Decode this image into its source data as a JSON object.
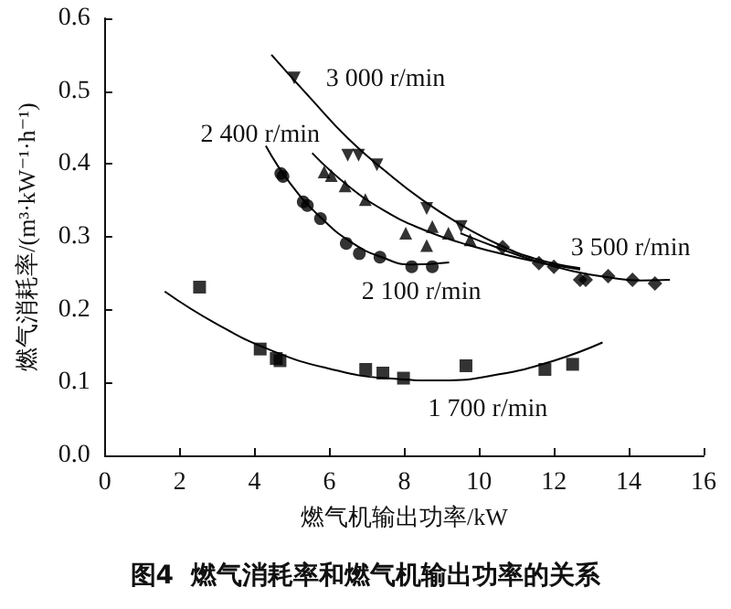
{
  "chart_data": {
    "type": "scatter",
    "title": "图4  燃气消耗率和燃气机输出功率的关系",
    "xlabel": "燃气机输出功率/kW",
    "ylabel": "燃气消耗率/(m³·kW⁻¹·h⁻¹)",
    "xlim": [
      0,
      16
    ],
    "xticks": [
      0,
      2,
      4,
      6,
      8,
      10,
      12,
      14,
      16
    ],
    "ylim": [
      0,
      0.6
    ],
    "yticks": [
      {
        "value": 0,
        "label": "0.0"
      },
      {
        "value": 0.1,
        "label": "0.1"
      },
      {
        "value": 0.2,
        "label": "0.2"
      },
      {
        "value": 0.3,
        "label": "0.3"
      },
      {
        "value": 0.4,
        "label": "0.4"
      },
      {
        "value": 0.5,
        "label": "0.5"
      },
      {
        "value": 0.6,
        "label": "0.6"
      }
    ],
    "series": [
      {
        "name": "1 700 r/min",
        "marker": "square",
        "color": "#000000",
        "x": [
          2.53,
          4.15,
          4.58,
          4.68,
          6.97,
          7.43,
          7.98,
          9.65,
          11.76,
          12.5
        ],
        "values": [
          0.231,
          0.146,
          0.133,
          0.13,
          0.118,
          0.113,
          0.106,
          0.123,
          0.118,
          0.125
        ]
      },
      {
        "type": "line",
        "marker": "none",
        "color": "#000000",
        "x": [
          1.6,
          3,
          4.5,
          6,
          7.5,
          9,
          10.5,
          12,
          13.3
        ],
        "values": [
          0.225,
          0.18,
          0.143,
          0.119,
          0.106,
          0.103,
          0.111,
          0.13,
          0.155
        ]
      },
      {
        "name": "3 000 r/min",
        "marker": "triangle-down",
        "color": "#000000",
        "x": [
          5.06,
          6.49,
          6.78,
          7.27,
          8.6,
          9.52
        ],
        "values": [
          0.518,
          0.412,
          0.412,
          0.399,
          0.339,
          0.314
        ]
      },
      {
        "type": "line",
        "marker": "none",
        "color": "#000000",
        "x": [
          4.45,
          5.5,
          6.5,
          7.5,
          8.5,
          9.5,
          10.5,
          11.5,
          12.7
        ],
        "values": [
          0.55,
          0.49,
          0.435,
          0.39,
          0.35,
          0.317,
          0.29,
          0.27,
          0.257
        ]
      },
      {
        "name": "2 400 r/min",
        "marker": "triangle",
        "color": "#000000",
        "x": [
          5.86,
          6.05,
          6.42,
          6.96,
          8.04,
          8.6,
          8.75,
          9.18,
          9.76
        ],
        "values": [
          0.389,
          0.384,
          0.37,
          0.351,
          0.305,
          0.288,
          0.314,
          0.305,
          0.296
        ]
      },
      {
        "type": "line",
        "marker": "none",
        "color": "#000000",
        "x": [
          5.54,
          6.5,
          7.5,
          8.5,
          9.5,
          10.5,
          11.5,
          12.7
        ],
        "values": [
          0.415,
          0.37,
          0.335,
          0.31,
          0.292,
          0.278,
          0.266,
          0.255
        ]
      },
      {
        "name": "2 100 r/min",
        "marker": "circle",
        "color": "#000000",
        "x": [
          4.7,
          4.76,
          5.3,
          5.41,
          5.76,
          6.45,
          6.8,
          7.35,
          8.2,
          8.75
        ],
        "values": [
          0.387,
          0.383,
          0.348,
          0.343,
          0.325,
          0.291,
          0.277,
          0.272,
          0.259,
          0.259
        ]
      },
      {
        "type": "line",
        "marker": "none",
        "color": "#000000",
        "x": [
          4.3,
          5,
          5.8,
          6.6,
          7.4,
          8.2,
          9.2
        ],
        "values": [
          0.425,
          0.37,
          0.325,
          0.292,
          0.272,
          0.262,
          0.265
        ]
      },
      {
        "name": "3 500 r/min",
        "marker": "diamond",
        "color": "#000000",
        "x": [
          10.63,
          11.6,
          12.0,
          12.7,
          12.85,
          13.45,
          14.1,
          14.7
        ],
        "values": [
          0.286,
          0.264,
          0.259,
          0.241,
          0.241,
          0.246,
          0.241,
          0.236
        ]
      },
      {
        "type": "line",
        "marker": "none",
        "color": "#000000",
        "x": [
          9.5,
          10.5,
          11.5,
          12.5,
          13.5,
          14.3,
          15.1
        ],
        "values": [
          0.305,
          0.285,
          0.267,
          0.253,
          0.244,
          0.24,
          0.241
        ]
      }
    ]
  }
}
